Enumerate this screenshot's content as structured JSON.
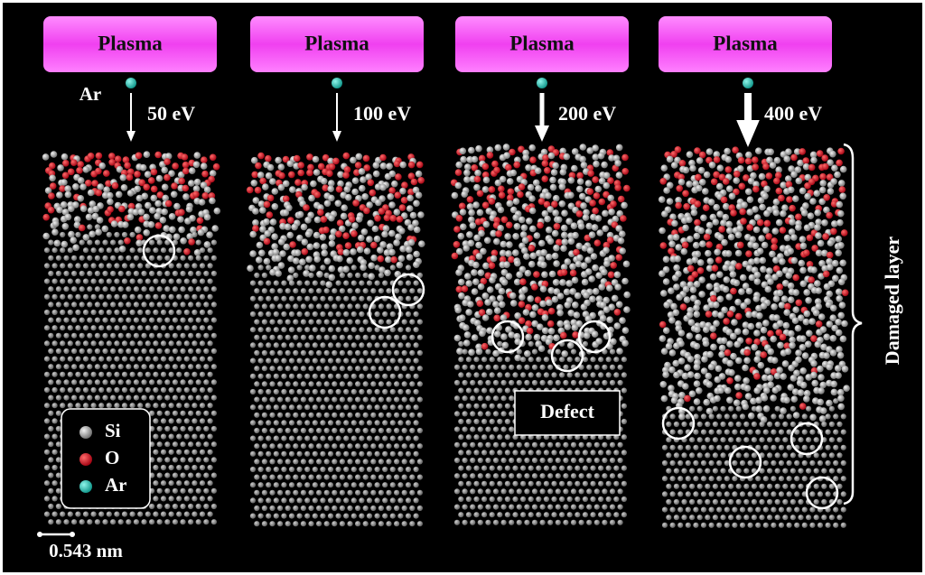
{
  "panels": [
    {
      "plasma": "Plasma",
      "energy": "50 eV"
    },
    {
      "plasma": "Plasma",
      "energy": "100 eV"
    },
    {
      "plasma": "Plasma",
      "energy": "200 eV"
    },
    {
      "plasma": "Plasma",
      "energy": "400 eV"
    }
  ],
  "ion_label": "Ar",
  "damaged_layer": "Damaged layer",
  "defect": "Defect",
  "legend": [
    "Si",
    "O",
    "Ar"
  ],
  "scale_bar": "0.543 nm"
}
